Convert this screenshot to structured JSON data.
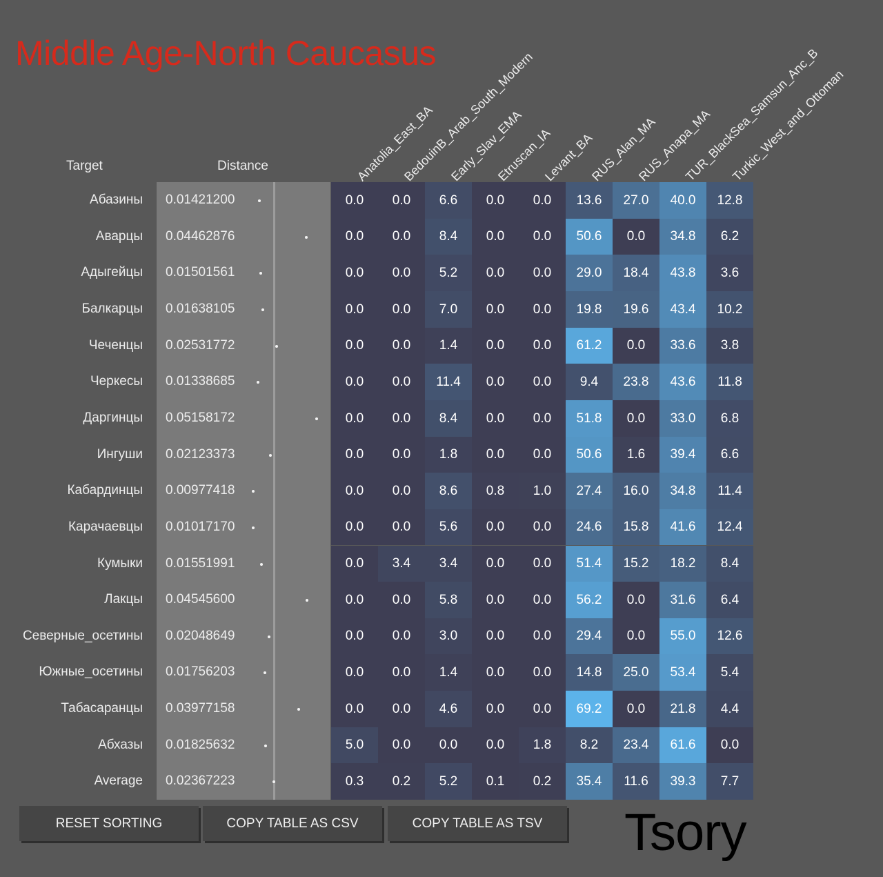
{
  "title": "Middle Age-North Caucasus",
  "headers": {
    "target": "Target",
    "distance": "Distance"
  },
  "columns": [
    "Anatolia_East_BA",
    "BedouinB_Arab_South_Modern",
    "Early_Slav_EMA",
    "Etruscan_IA",
    "Levant_BA",
    "RUS_Alan_MA",
    "RUS_Anapa_MA",
    "TUR_BlackSea_Samsun_Anc_B",
    "Turkic_West_and_Ottoman"
  ],
  "rows": [
    {
      "name": "Абазины",
      "distance": "0.01421200",
      "values": [
        "0.0",
        "0.0",
        "6.6",
        "0.0",
        "0.0",
        "13.6",
        "27.0",
        "40.0",
        "12.8"
      ]
    },
    {
      "name": "Аварцы",
      "distance": "0.04462876",
      "values": [
        "0.0",
        "0.0",
        "8.4",
        "0.0",
        "0.0",
        "50.6",
        "0.0",
        "34.8",
        "6.2"
      ]
    },
    {
      "name": "Адыгейцы",
      "distance": "0.01501561",
      "values": [
        "0.0",
        "0.0",
        "5.2",
        "0.0",
        "0.0",
        "29.0",
        "18.4",
        "43.8",
        "3.6"
      ]
    },
    {
      "name": "Балкарцы",
      "distance": "0.01638105",
      "values": [
        "0.0",
        "0.0",
        "7.0",
        "0.0",
        "0.0",
        "19.8",
        "19.6",
        "43.4",
        "10.2"
      ]
    },
    {
      "name": "Чеченцы",
      "distance": "0.02531772",
      "values": [
        "0.0",
        "0.0",
        "1.4",
        "0.0",
        "0.0",
        "61.2",
        "0.0",
        "33.6",
        "3.8"
      ]
    },
    {
      "name": "Черкесы",
      "distance": "0.01338685",
      "values": [
        "0.0",
        "0.0",
        "11.4",
        "0.0",
        "0.0",
        "9.4",
        "23.8",
        "43.6",
        "11.8"
      ]
    },
    {
      "name": "Даргинцы",
      "distance": "0.05158172",
      "values": [
        "0.0",
        "0.0",
        "8.4",
        "0.0",
        "0.0",
        "51.8",
        "0.0",
        "33.0",
        "6.8"
      ]
    },
    {
      "name": "Ингуши",
      "distance": "0.02123373",
      "values": [
        "0.0",
        "0.0",
        "1.8",
        "0.0",
        "0.0",
        "50.6",
        "1.6",
        "39.4",
        "6.6"
      ]
    },
    {
      "name": "Кабардинцы",
      "distance": "0.00977418",
      "values": [
        "0.0",
        "0.0",
        "8.6",
        "0.8",
        "1.0",
        "27.4",
        "16.0",
        "34.8",
        "11.4"
      ]
    },
    {
      "name": "Карачаевцы",
      "distance": "0.01017170",
      "values": [
        "0.0",
        "0.0",
        "5.6",
        "0.0",
        "0.0",
        "24.6",
        "15.8",
        "41.6",
        "12.4"
      ]
    },
    {
      "name": "Кумыки",
      "distance": "0.01551991",
      "values": [
        "0.0",
        "3.4",
        "3.4",
        "0.0",
        "0.0",
        "51.4",
        "15.2",
        "18.2",
        "8.4"
      ]
    },
    {
      "name": "Лакцы",
      "distance": "0.04545600",
      "values": [
        "0.0",
        "0.0",
        "5.8",
        "0.0",
        "0.0",
        "56.2",
        "0.0",
        "31.6",
        "6.4"
      ]
    },
    {
      "name": "Северные_осетины",
      "distance": "0.02048649",
      "values": [
        "0.0",
        "0.0",
        "3.0",
        "0.0",
        "0.0",
        "29.4",
        "0.0",
        "55.0",
        "12.6"
      ]
    },
    {
      "name": "Южные_осетины",
      "distance": "0.01756203",
      "values": [
        "0.0",
        "0.0",
        "1.4",
        "0.0",
        "0.0",
        "14.8",
        "25.0",
        "53.4",
        "5.4"
      ]
    },
    {
      "name": "Табасаранцы",
      "distance": "0.03977158",
      "values": [
        "0.0",
        "0.0",
        "4.6",
        "0.0",
        "0.0",
        "69.2",
        "0.0",
        "21.8",
        "4.4"
      ]
    },
    {
      "name": "Абхазы",
      "distance": "0.01825632",
      "values": [
        "5.0",
        "0.0",
        "0.0",
        "0.0",
        "1.8",
        "8.2",
        "23.4",
        "61.6",
        "0.0"
      ]
    },
    {
      "name": "Average",
      "distance": "0.02367223",
      "values": [
        "0.3",
        "0.2",
        "5.2",
        "0.1",
        "0.2",
        "35.4",
        "11.6",
        "39.3",
        "7.7"
      ]
    }
  ],
  "buttons": {
    "reset": "RESET SORTING",
    "csv": "COPY TABLE AS CSV",
    "tsv": "COPY TABLE AS TSV"
  },
  "logo": "Tsory",
  "colors": {
    "title": "#d62a1c",
    "background": "#585858",
    "distance_panel": "#7a7a7a"
  }
}
